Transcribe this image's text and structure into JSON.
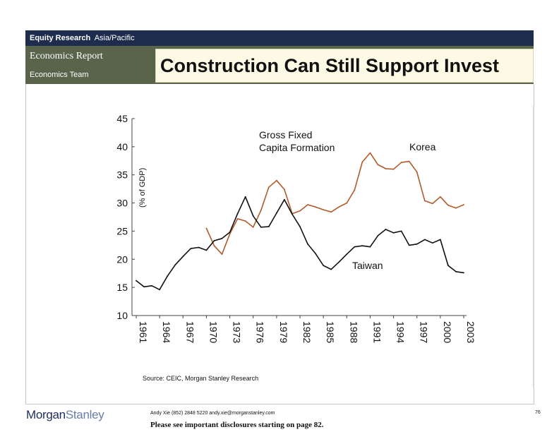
{
  "header": {
    "department": "Equity Research",
    "region": "Asia/Pacific",
    "report_type": "Economics Report",
    "team": "Economics Team",
    "headline": "Construction Can Still Support Invest"
  },
  "chart_data": {
    "type": "line",
    "title": "Gross Fixed Capita Formation",
    "title_lines": [
      "Gross Fixed",
      "Capita Formation"
    ],
    "ylabel": "(% of GDP)",
    "xlabel": "",
    "ylim": [
      10,
      45
    ],
    "yticks": [
      "10",
      "15",
      "20",
      "25",
      "30",
      "35",
      "40",
      "45"
    ],
    "xticks": [
      "1961",
      "1964",
      "1967",
      "1970",
      "1973",
      "1976",
      "1979",
      "1982",
      "1985",
      "1988",
      "1991",
      "1994",
      "1997",
      "2000",
      "2003"
    ],
    "grid": false,
    "series": [
      {
        "name": "Korea",
        "color": "#b15a2a",
        "x": [
          1970,
          1971,
          1972,
          1973,
          1974,
          1975,
          1976,
          1977,
          1978,
          1979,
          1980,
          1981,
          1982,
          1983,
          1984,
          1985,
          1986,
          1987,
          1988,
          1989,
          1990,
          1991,
          1992,
          1993,
          1994,
          1995,
          1996,
          1997,
          1998,
          1999,
          2000,
          2001,
          2002,
          2003
        ],
        "values": [
          25.5,
          22.4,
          20.9,
          24.5,
          27.2,
          26.8,
          25.7,
          28.7,
          32.8,
          34.0,
          32.4,
          28.1,
          28.6,
          29.7,
          29.3,
          28.8,
          28.4,
          29.3,
          30.0,
          32.3,
          37.3,
          38.9,
          36.8,
          36.1,
          36.0,
          37.2,
          37.4,
          35.5,
          30.4,
          29.9,
          31.1,
          29.6,
          29.1,
          29.7
        ]
      },
      {
        "name": "Taiwan",
        "color": "#111111",
        "x": [
          1961,
          1962,
          1963,
          1964,
          1965,
          1966,
          1967,
          1968,
          1969,
          1970,
          1971,
          1972,
          1973,
          1974,
          1975,
          1976,
          1977,
          1978,
          1979,
          1980,
          1981,
          1982,
          1983,
          1984,
          1985,
          1986,
          1987,
          1988,
          1989,
          1990,
          1991,
          1992,
          1993,
          1994,
          1995,
          1996,
          1997,
          1998,
          1999,
          2000,
          2001,
          2002,
          2003
        ],
        "values": [
          16.2,
          15.1,
          15.3,
          14.6,
          17.0,
          19.0,
          20.5,
          21.9,
          22.1,
          21.6,
          23.3,
          23.7,
          24.8,
          28.1,
          31.1,
          27.7,
          25.7,
          25.8,
          28.2,
          30.6,
          28.0,
          25.8,
          22.7,
          21.0,
          18.9,
          18.2,
          19.5,
          20.9,
          22.2,
          22.4,
          22.2,
          24.2,
          25.3,
          24.7,
          25.0,
          22.5,
          22.7,
          23.5,
          22.9,
          23.5,
          18.9,
          17.8,
          17.6
        ]
      }
    ]
  },
  "source": "Source: CEIC, Morgan Stanley Research",
  "footer": {
    "logo_morgan": "Morgan",
    "logo_stanley": "Stanley",
    "contact": "Andy Xie (852) 2848 5220  andy.xie@morganstanley.com",
    "page": "76",
    "disclosure": "Please see important disclosures starting on page 82."
  }
}
